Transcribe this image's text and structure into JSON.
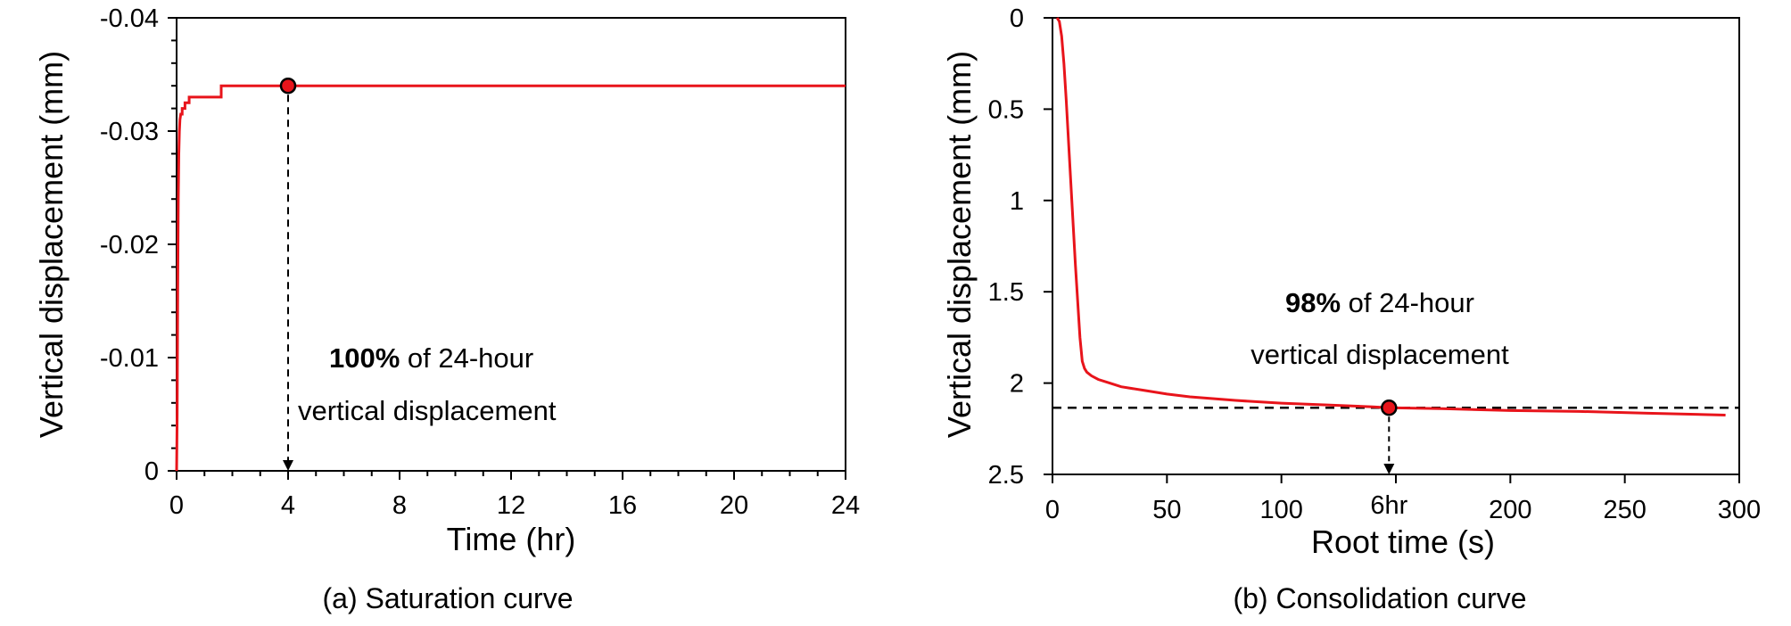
{
  "chart_data": [
    {
      "type": "line",
      "caption": "(a) Saturation curve",
      "xlabel": "Time (hr)",
      "ylabel": "Vertical displacement (mm)",
      "xlim": [
        0,
        24
      ],
      "ylim": [
        0,
        -0.04
      ],
      "y_inverted": true,
      "x_ticks": [
        "0",
        "4",
        "8",
        "12",
        "16",
        "20",
        "24"
      ],
      "y_ticks": [
        "0",
        "-0.01",
        "-0.02",
        "-0.03",
        "-0.04"
      ],
      "series": [
        {
          "color": "#e8141b",
          "x": [
            0,
            0.02,
            0.04,
            0.06,
            0.08,
            0.1,
            0.12,
            0.15,
            0.2,
            0.2,
            0.3,
            0.3,
            0.45,
            0.45,
            1.6,
            1.6,
            4,
            8,
            12,
            16,
            20,
            24
          ],
          "y": [
            0,
            -0.005,
            -0.016,
            -0.024,
            -0.028,
            -0.03,
            -0.031,
            -0.0315,
            -0.0315,
            -0.032,
            -0.032,
            -0.0325,
            -0.0325,
            -0.033,
            -0.033,
            -0.034,
            -0.034,
            -0.034,
            -0.034,
            -0.034,
            -0.034,
            -0.034
          ]
        }
      ],
      "marker": {
        "x": 4,
        "y": -0.034,
        "fill": "#e8141b"
      },
      "annotation": {
        "bold": "100%",
        "rest": " of 24-hour",
        "line2": "vertical displacement"
      }
    },
    {
      "type": "line",
      "caption": "(b) Consolidation curve",
      "xlabel": "Root time (s)",
      "ylabel": "Vertical displacement (mm)",
      "xlim": [
        0,
        300
      ],
      "ylim": [
        0,
        2.5
      ],
      "y_inverted": true,
      "x_ticks": [
        "0",
        "50",
        "100",
        "200",
        "250",
        "300"
      ],
      "x_tick_values": [
        0,
        50,
        100,
        200,
        250,
        300
      ],
      "y_ticks": [
        "0",
        "0.5",
        "1",
        "1.5",
        "2",
        "2.5"
      ],
      "special_tick": {
        "label": "6hr",
        "x": 147
      },
      "series": [
        {
          "color": "#e8141b",
          "x": [
            2,
            3,
            4,
            5,
            6,
            8,
            10,
            12,
            13,
            14,
            15,
            17,
            20,
            25,
            30,
            40,
            50,
            60,
            80,
            100,
            120,
            140,
            147,
            170,
            200,
            230,
            260,
            294
          ],
          "y": [
            0,
            0.02,
            0.1,
            0.25,
            0.45,
            0.9,
            1.35,
            1.75,
            1.88,
            1.92,
            1.94,
            1.96,
            1.98,
            2.0,
            2.02,
            2.04,
            2.06,
            2.075,
            2.095,
            2.11,
            2.12,
            2.13,
            2.135,
            2.14,
            2.15,
            2.155,
            2.165,
            2.175
          ]
        }
      ],
      "marker": {
        "x": 147,
        "y": 2.135,
        "fill": "#e8141b"
      },
      "hline": 2.135,
      "annotation": {
        "bold": "98%",
        "rest": " of 24-hour",
        "line2": "vertical displacement"
      }
    }
  ]
}
